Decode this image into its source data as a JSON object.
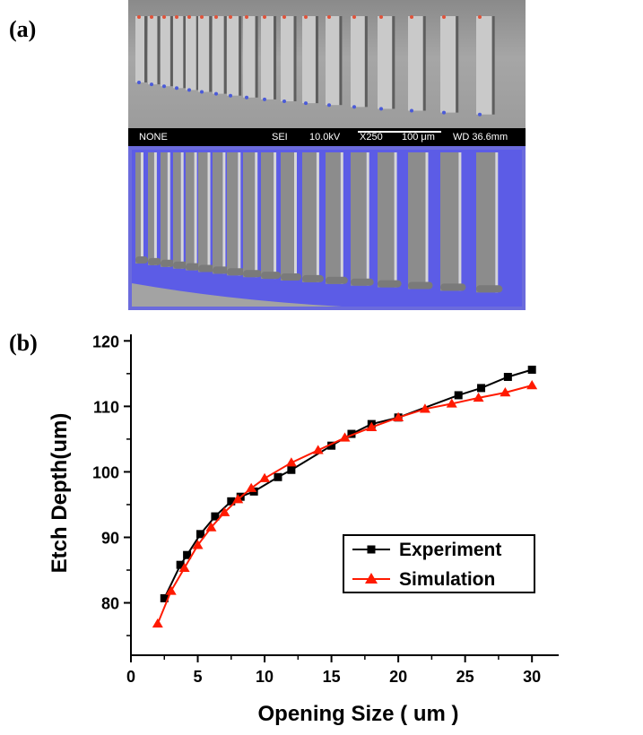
{
  "panels": {
    "a_label": "(a)",
    "b_label": "(b)"
  },
  "sem": {
    "info_left": "NONE",
    "detector": "SEI",
    "voltage": "10.0kV",
    "magnification": "X250",
    "scale": "100 μm",
    "working_distance": "WD 36.6mm",
    "colors": {
      "highlight": "#5a5ae0",
      "top_marker": "#e0523a",
      "bottom_marker": "#4a5ad8"
    }
  },
  "chart_data": {
    "type": "line",
    "title": "",
    "xlabel": "Opening Size ( um )",
    "ylabel": "Etch Depth(um)",
    "xlim": [
      0,
      32
    ],
    "ylim": [
      72,
      121
    ],
    "xticks": [
      0,
      5,
      10,
      15,
      20,
      25,
      30
    ],
    "yticks": [
      80,
      90,
      100,
      110,
      120
    ],
    "legend_position": "bottom-right",
    "series": [
      {
        "name": "Experiment",
        "marker": "square",
        "color": "#000000",
        "x": [
          2.5,
          3.7,
          4.2,
          5.2,
          6.3,
          7.5,
          8.2,
          9.2,
          11,
          12,
          15,
          16.5,
          18,
          20,
          24.5,
          26.2,
          28.2,
          30
        ],
        "y": [
          80.7,
          85.8,
          87.3,
          90.5,
          93.2,
          95.5,
          96.2,
          97,
          99.2,
          100.3,
          104,
          105.8,
          107.3,
          108.3,
          111.7,
          112.8,
          114.5,
          115.6
        ]
      },
      {
        "name": "Simulation",
        "marker": "triangle",
        "color": "#ff1a00",
        "x": [
          2,
          3,
          4,
          5,
          6,
          7,
          8,
          9,
          10,
          12,
          14,
          16,
          18,
          20,
          22,
          24,
          26,
          28,
          30
        ],
        "y": [
          76.8,
          81.8,
          85.3,
          88.8,
          91.5,
          93.8,
          95.8,
          97.5,
          99,
          101.4,
          103.3,
          105.2,
          106.8,
          108.3,
          109.6,
          110.4,
          111.3,
          112.1,
          113.2
        ]
      }
    ]
  }
}
